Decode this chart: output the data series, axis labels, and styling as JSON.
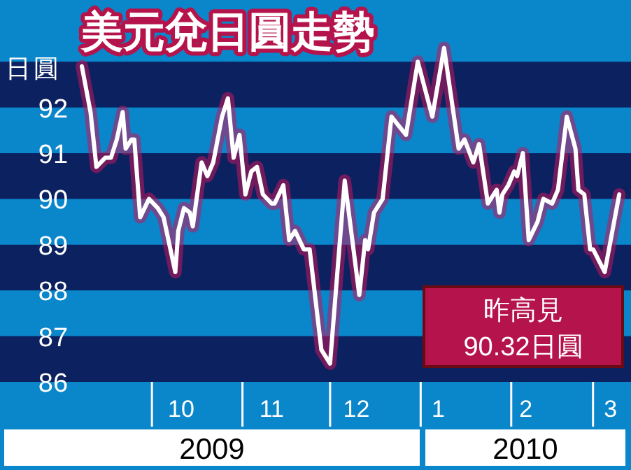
{
  "chart_data": {
    "type": "line",
    "title": "美元兌日圓走勢",
    "ylabel": "日圓",
    "annotations": [
      "昨高見\n90.32日圓",
      "2009",
      "2010"
    ],
    "x": [
      "2009-09-07",
      "2009-09-10",
      "2009-09-12",
      "2009-09-15",
      "2009-09-17",
      "2009-09-19",
      "2009-09-21",
      "2009-09-22",
      "2009-09-24",
      "2009-09-25",
      "2009-09-27",
      "2009-09-30",
      "2009-10-03",
      "2009-10-05",
      "2009-10-09",
      "2009-10-10",
      "2009-10-12",
      "2009-10-14",
      "2009-10-15",
      "2009-10-18",
      "2009-10-20",
      "2009-10-22",
      "2009-10-25",
      "2009-10-27",
      "2009-10-29",
      "2009-10-31",
      "2009-11-02",
      "2009-11-04",
      "2009-11-06",
      "2009-11-08",
      "2009-11-11",
      "2009-11-12",
      "2009-11-15",
      "2009-11-17",
      "2009-11-19",
      "2009-11-22",
      "2009-11-24",
      "2009-11-28",
      "2009-12-01",
      "2009-12-06",
      "2009-12-11",
      "2009-12-13",
      "2009-12-14",
      "2009-12-16",
      "2009-12-19",
      "2009-12-22",
      "2009-12-27",
      "2009-12-31",
      "2010-01-05",
      "2010-01-09",
      "2010-01-14",
      "2010-01-16",
      "2010-01-19",
      "2010-01-21",
      "2010-01-24",
      "2010-01-27",
      "2010-01-28",
      "2010-01-29",
      "2010-01-31",
      "2010-02-02",
      "2010-02-03",
      "2010-02-05",
      "2010-02-07",
      "2010-02-10",
      "2010-02-12",
      "2010-02-15",
      "2010-02-17",
      "2010-02-20",
      "2010-02-23",
      "2010-02-24",
      "2010-02-26",
      "2010-02-28",
      "2010-03-01",
      "2010-03-05",
      "2010-03-10"
    ],
    "series": [
      {
        "color": "#ffffff",
        "values": [
          92.9,
          91.9,
          90.7,
          90.9,
          90.9,
          91.3,
          91.9,
          91.1,
          91.3,
          91.3,
          89.6,
          90.0,
          89.8,
          89.6,
          88.4,
          89.3,
          89.8,
          89.7,
          89.4,
          90.8,
          90.5,
          90.8,
          91.8,
          92.2,
          90.9,
          91.4,
          90.1,
          90.6,
          90.7,
          90.1,
          89.9,
          89.9,
          90.3,
          89.1,
          89.3,
          88.9,
          88.9,
          86.7,
          86.4,
          90.4,
          87.9,
          89.1,
          88.9,
          89.7,
          90.0,
          91.8,
          91.4,
          93.0,
          91.8,
          93.3,
          91.1,
          91.3,
          90.8,
          91.2,
          89.9,
          90.2,
          89.7,
          90.1,
          90.3,
          90.6,
          90.5,
          91.0,
          89.1,
          89.5,
          90.0,
          89.9,
          90.2,
          91.8,
          91.1,
          90.2,
          90.1,
          88.9,
          88.9,
          88.4,
          90.1
        ]
      }
    ],
    "xlim": [
      "2009-08-10",
      "2010-03-14"
    ],
    "xticks": [
      {
        "value": "2009-10-11",
        "label": "10"
      },
      {
        "value": "2009-11-11",
        "label": "11"
      },
      {
        "value": "2009-12-10",
        "label": "12"
      },
      {
        "value": "2010-01-07",
        "label": "1"
      },
      {
        "value": "2010-02-06",
        "label": "2"
      },
      {
        "value": "2010-03-07",
        "label": "3"
      }
    ],
    "ylim": [
      86,
      94.35
    ],
    "yticks": [
      86,
      87,
      88,
      89,
      90,
      91,
      92
    ],
    "bands": [
      {
        "axis": "y",
        "from": 92,
        "to": 93,
        "color": "#0c2160"
      },
      {
        "axis": "y",
        "from": 90,
        "to": 91,
        "color": "#0c2160"
      },
      {
        "axis": "y",
        "from": 88,
        "to": 89,
        "color": "#0c2160"
      },
      {
        "axis": "y",
        "from": 86,
        "to": 87,
        "color": "#0c2160"
      }
    ],
    "grid": false,
    "marker": "none",
    "line_style": "solid"
  }
}
